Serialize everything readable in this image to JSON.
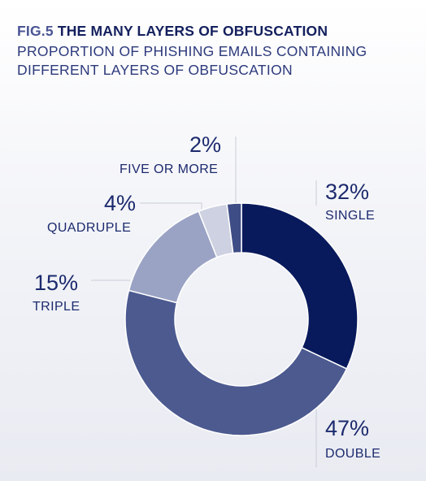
{
  "header": {
    "fig_number": "FIG.5",
    "title": "THE MANY LAYERS OF OBFUSCATION",
    "subtitle": "PROPORTION OF PHISHING EMAILS CONTAINING DIFFERENT LAYERS OF OBFUSCATION"
  },
  "chart_data": {
    "type": "pie",
    "style": "donut",
    "title": "THE MANY LAYERS OF OBFUSCATION",
    "subtitle": "PROPORTION OF PHISHING EMAILS CONTAINING DIFFERENT LAYERS OF OBFUSCATION",
    "slices": [
      {
        "label": "SINGLE",
        "value": 32,
        "display": "32%",
        "color": "#081a5c"
      },
      {
        "label": "DOUBLE",
        "value": 47,
        "display": "47%",
        "color": "#4c5a90"
      },
      {
        "label": "TRIPLE",
        "value": 15,
        "display": "15%",
        "color": "#9aa3c4"
      },
      {
        "label": "QUADRUPLE",
        "value": 4,
        "display": "4%",
        "color": "#cdd1e1"
      },
      {
        "label": "FIVE OR MORE",
        "value": 2,
        "display": "2%",
        "color": "#3f4d86"
      }
    ],
    "leader_color": "#c9ccd8",
    "start": "top",
    "direction": "clockwise"
  }
}
